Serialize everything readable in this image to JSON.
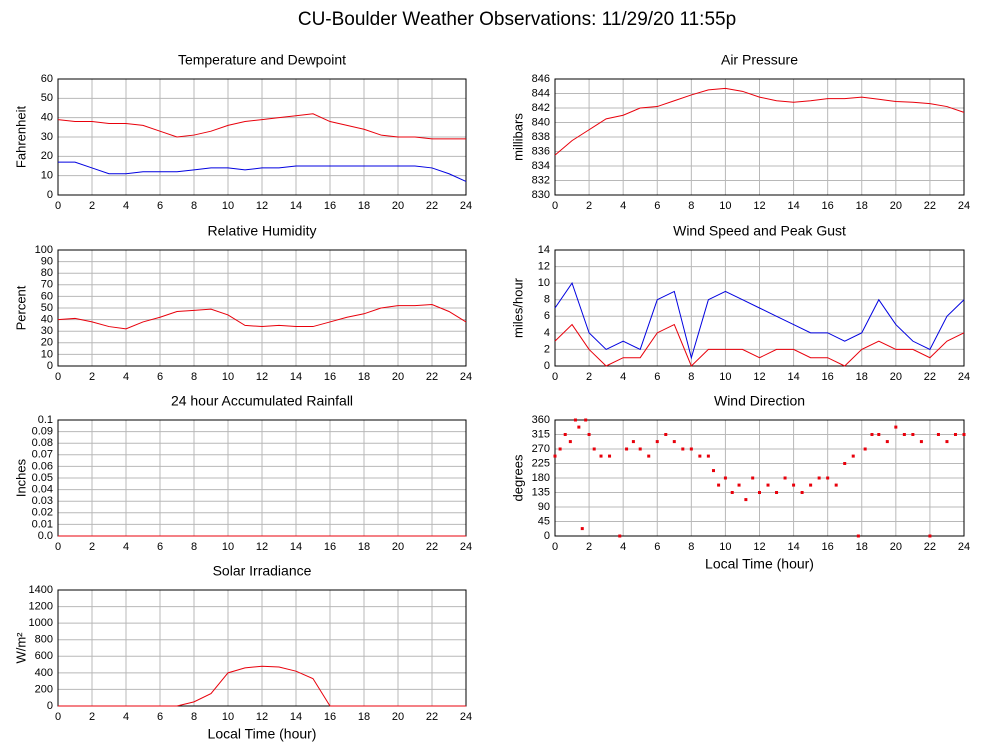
{
  "title": "CU-Boulder Weather Observations: 11/29/20 11:55p",
  "chart_data": [
    {
      "type": "line",
      "title": "Temperature and Dewpoint",
      "ylabel": "Fahrenheit",
      "x": [
        0,
        1,
        2,
        3,
        4,
        5,
        6,
        7,
        8,
        9,
        10,
        11,
        12,
        13,
        14,
        15,
        16,
        17,
        18,
        19,
        20,
        21,
        22,
        23,
        24
      ],
      "xlim": [
        0,
        24
      ],
      "xticks": [
        0,
        2,
        4,
        6,
        8,
        10,
        12,
        14,
        16,
        18,
        20,
        22,
        24
      ],
      "ylim": [
        0,
        60
      ],
      "yticks": [
        0,
        10,
        20,
        30,
        40,
        50,
        60
      ],
      "grid": true,
      "series": [
        {
          "color": "#e8000b",
          "values": [
            39,
            38,
            38,
            37,
            37,
            36,
            33,
            30,
            31,
            33,
            36,
            38,
            39,
            40,
            41,
            42,
            38,
            36,
            34,
            31,
            30,
            30,
            29,
            29,
            29
          ]
        },
        {
          "color": "#0000e0",
          "values": [
            17,
            17,
            14,
            11,
            11,
            12,
            12,
            12,
            13,
            14,
            14,
            13,
            14,
            14,
            15,
            15,
            15,
            15,
            15,
            15,
            15,
            15,
            14,
            11,
            7
          ]
        }
      ]
    },
    {
      "type": "line",
      "title": "Air Pressure",
      "ylabel": "millibars",
      "x": [
        0,
        1,
        2,
        3,
        4,
        5,
        6,
        7,
        8,
        9,
        10,
        11,
        12,
        13,
        14,
        15,
        16,
        17,
        18,
        19,
        20,
        21,
        22,
        23,
        24
      ],
      "xlim": [
        0,
        24
      ],
      "xticks": [
        0,
        2,
        4,
        6,
        8,
        10,
        12,
        14,
        16,
        18,
        20,
        22,
        24
      ],
      "ylim": [
        830,
        846
      ],
      "yticks": [
        830,
        832,
        834,
        836,
        838,
        840,
        842,
        844,
        846
      ],
      "grid": true,
      "series": [
        {
          "color": "#e8000b",
          "values": [
            835.5,
            837.5,
            839,
            840.5,
            841,
            842,
            842.2,
            843,
            843.8,
            844.5,
            844.7,
            844.3,
            843.5,
            843,
            842.8,
            843,
            843.3,
            843.3,
            843.5,
            843.2,
            842.9,
            842.8,
            842.6,
            842.2,
            841.4
          ]
        }
      ]
    },
    {
      "type": "line",
      "title": "Relative Humidity",
      "ylabel": "Percent",
      "x": [
        0,
        1,
        2,
        3,
        4,
        5,
        6,
        7,
        8,
        9,
        10,
        11,
        12,
        13,
        14,
        15,
        16,
        17,
        18,
        19,
        20,
        21,
        22,
        23,
        24
      ],
      "xlim": [
        0,
        24
      ],
      "xticks": [
        0,
        2,
        4,
        6,
        8,
        10,
        12,
        14,
        16,
        18,
        20,
        22,
        24
      ],
      "ylim": [
        0,
        100
      ],
      "yticks": [
        0,
        10,
        20,
        30,
        40,
        50,
        60,
        70,
        80,
        90,
        100
      ],
      "grid": true,
      "series": [
        {
          "color": "#e8000b",
          "values": [
            40,
            41,
            38,
            34,
            32,
            38,
            42,
            47,
            48,
            49,
            44,
            35,
            34,
            35,
            34,
            34,
            38,
            42,
            45,
            50,
            52,
            52,
            53,
            47,
            38
          ]
        }
      ]
    },
    {
      "type": "line",
      "title": "Wind Speed and Peak Gust",
      "ylabel": "miles/hour",
      "x": [
        0,
        1,
        2,
        3,
        4,
        5,
        6,
        7,
        8,
        9,
        10,
        11,
        12,
        13,
        14,
        15,
        16,
        17,
        18,
        19,
        20,
        21,
        22,
        23,
        24
      ],
      "xlim": [
        0,
        24
      ],
      "xticks": [
        0,
        2,
        4,
        6,
        8,
        10,
        12,
        14,
        16,
        18,
        20,
        22,
        24
      ],
      "ylim": [
        0,
        14
      ],
      "yticks": [
        0,
        2,
        4,
        6,
        8,
        10,
        12,
        14
      ],
      "grid": true,
      "series": [
        {
          "color": "#0000e0",
          "values": [
            7,
            10,
            4,
            2,
            3,
            2,
            8,
            9,
            1,
            8,
            9,
            8,
            7,
            6,
            5,
            4,
            4,
            3,
            4,
            8,
            5,
            3,
            2,
            6,
            8
          ]
        },
        {
          "color": "#e8000b",
          "values": [
            3,
            5,
            2,
            0,
            1,
            1,
            4,
            5,
            0,
            2,
            2,
            2,
            1,
            2,
            2,
            1,
            1,
            0,
            2,
            3,
            2,
            2,
            1,
            3,
            4
          ]
        }
      ]
    },
    {
      "type": "line",
      "title": "24 hour Accumulated Rainfall",
      "ylabel": "Inches",
      "x": [
        0,
        1,
        2,
        3,
        4,
        5,
        6,
        7,
        8,
        9,
        10,
        11,
        12,
        13,
        14,
        15,
        16,
        17,
        18,
        19,
        20,
        21,
        22,
        23,
        24
      ],
      "xlim": [
        0,
        24
      ],
      "xticks": [
        0,
        2,
        4,
        6,
        8,
        10,
        12,
        14,
        16,
        18,
        20,
        22,
        24
      ],
      "ylim": [
        0,
        0.1
      ],
      "yticks": [
        {
          "value": 0,
          "label": "0.0"
        },
        0.01,
        0.02,
        0.03,
        0.04,
        0.05,
        0.06,
        0.07,
        0.08,
        0.09,
        0.1
      ],
      "grid": true,
      "series": [
        {
          "color": "#e8000b",
          "values": [
            0,
            0,
            0,
            0,
            0,
            0,
            0,
            0,
            0,
            0,
            0,
            0,
            0,
            0,
            0,
            0,
            0,
            0,
            0,
            0,
            0,
            0,
            0,
            0,
            0
          ]
        }
      ]
    },
    {
      "type": "scatter",
      "title": "Wind Direction",
      "ylabel": "degrees",
      "xlabel": "Local Time (hour)",
      "x": [
        0,
        0.3,
        0.6,
        0.9,
        1.2,
        1.4,
        1.6,
        1.8,
        2.0,
        2.3,
        2.7,
        3.2,
        3.8,
        4.2,
        4.6,
        5.0,
        5.5,
        6.0,
        6.5,
        7.0,
        7.5,
        8.0,
        8.5,
        9.0,
        9.3,
        9.6,
        10.0,
        10.4,
        10.8,
        11.2,
        11.6,
        12.0,
        12.5,
        13.0,
        13.5,
        14.0,
        14.5,
        15.0,
        15.5,
        16.0,
        16.5,
        17.0,
        17.5,
        17.8,
        18.2,
        18.6,
        19.0,
        19.5,
        20.0,
        20.5,
        21.0,
        21.5,
        22.0,
        22.5,
        23.0,
        23.5,
        24.0
      ],
      "xlim": [
        0,
        24
      ],
      "xticks": [
        0,
        2,
        4,
        6,
        8,
        10,
        12,
        14,
        16,
        18,
        20,
        22,
        24
      ],
      "ylim": [
        0,
        360
      ],
      "yticks": [
        0,
        45,
        90,
        135,
        180,
        225,
        270,
        315,
        360
      ],
      "grid": true,
      "series": [
        {
          "color": "#e8000b",
          "values": [
            248,
            270,
            315,
            293,
            360,
            338,
            23,
            360,
            315,
            270,
            248,
            248,
            0,
            270,
            293,
            270,
            248,
            293,
            315,
            293,
            270,
            270,
            248,
            248,
            203,
            158,
            180,
            135,
            158,
            113,
            180,
            135,
            158,
            135,
            180,
            158,
            135,
            158,
            180,
            180,
            158,
            225,
            248,
            0,
            270,
            315,
            315,
            293,
            338,
            315,
            315,
            293,
            0,
            315,
            293,
            315,
            315
          ]
        }
      ]
    },
    {
      "type": "line",
      "title": "Solar Irradiance",
      "ylabel": "W/m²",
      "xlabel": "Local Time (hour)",
      "x": [
        0,
        1,
        2,
        3,
        4,
        5,
        6,
        7,
        8,
        9,
        10,
        11,
        12,
        13,
        14,
        15,
        16,
        17,
        18,
        19,
        20,
        21,
        22,
        23,
        24
      ],
      "xlim": [
        0,
        24
      ],
      "xticks": [
        0,
        2,
        4,
        6,
        8,
        10,
        12,
        14,
        16,
        18,
        20,
        22,
        24
      ],
      "ylim": [
        0,
        1400
      ],
      "yticks": [
        0,
        200,
        400,
        600,
        800,
        1000,
        1200,
        1400
      ],
      "grid": true,
      "series": [
        {
          "color": "#e8000b",
          "values": [
            0,
            0,
            0,
            0,
            0,
            0,
            0,
            0,
            50,
            150,
            400,
            460,
            480,
            470,
            420,
            330,
            0,
            0,
            0,
            0,
            0,
            0,
            0,
            0,
            0
          ]
        }
      ]
    }
  ]
}
